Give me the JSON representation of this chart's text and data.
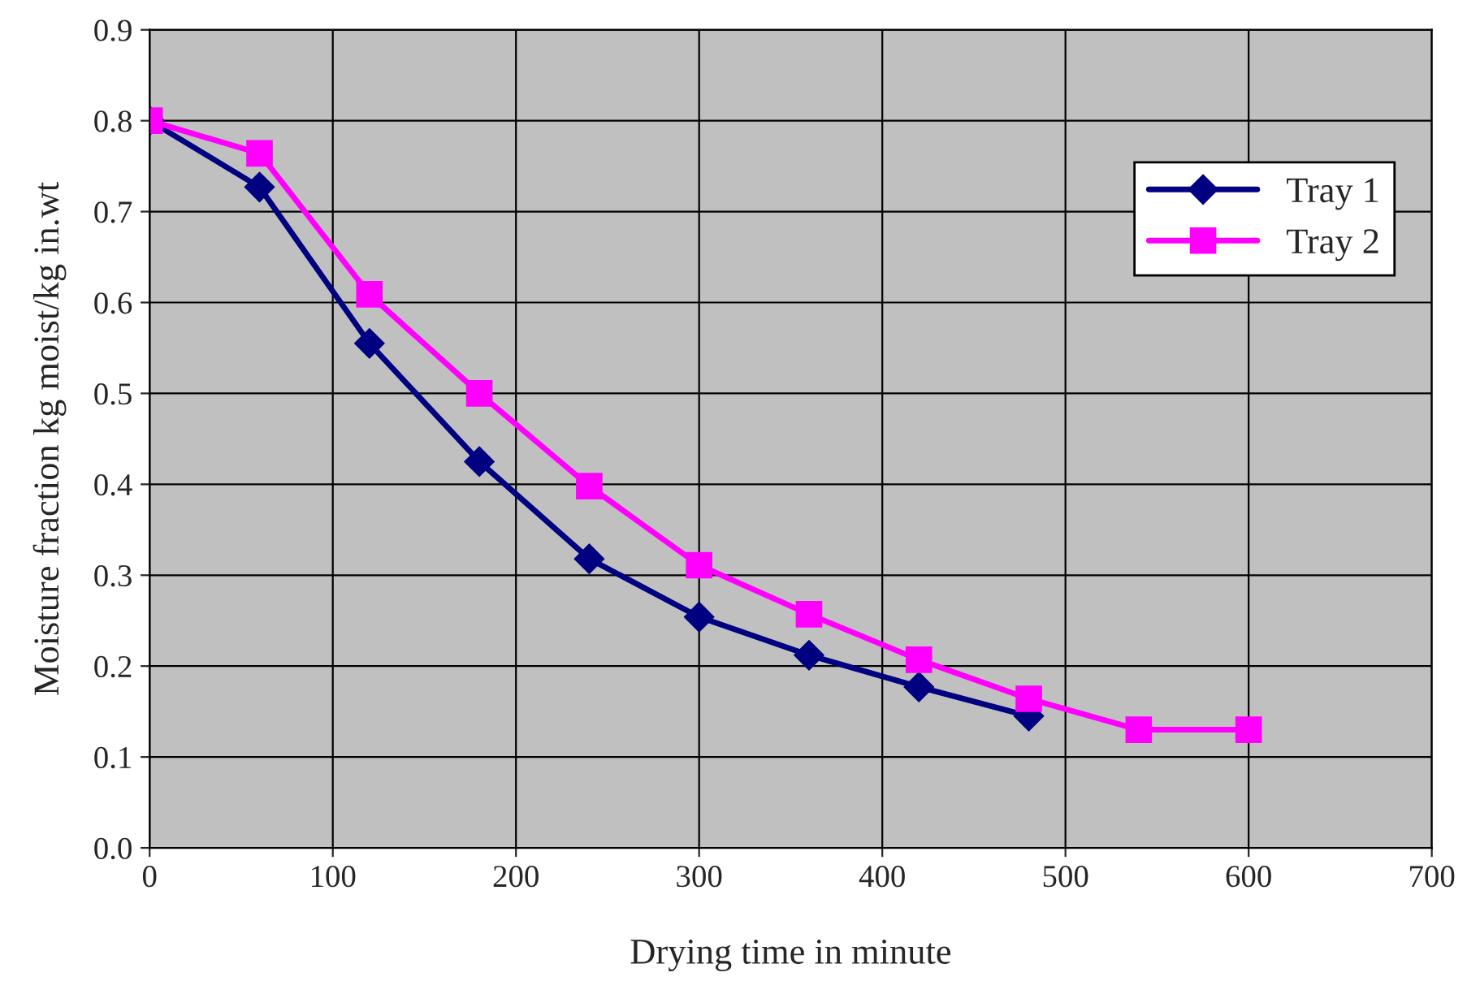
{
  "chart_data": {
    "type": "line",
    "xlabel": "Drying time in minute",
    "ylabel": "Moisture fraction kg moist/kg in.wt",
    "x": [
      0,
      60,
      120,
      180,
      240,
      300,
      360,
      420,
      480,
      540,
      600
    ],
    "series": [
      {
        "name": "Tray 1",
        "color": "#000080",
        "marker": "diamond",
        "values": [
          0.8,
          0.727,
          0.555,
          0.425,
          0.318,
          0.254,
          0.212,
          0.177,
          0.145,
          null,
          null
        ]
      },
      {
        "name": "Tray 2",
        "color": "#ff00ff",
        "marker": "square",
        "values": [
          0.8,
          0.764,
          0.609,
          0.5,
          0.398,
          0.311,
          0.257,
          0.207,
          0.164,
          0.13,
          0.13
        ]
      }
    ],
    "xlim": [
      0,
      700
    ],
    "xticks": [
      0,
      100,
      200,
      300,
      400,
      500,
      600,
      700
    ],
    "ylim": [
      0,
      0.9
    ],
    "yticks": [
      {
        "value": 0,
        "label": "0.0"
      },
      0.1,
      0.2,
      0.3,
      0.4,
      0.5,
      0.6,
      0.7,
      0.8,
      0.9
    ],
    "grid": true,
    "legend": "top right"
  }
}
